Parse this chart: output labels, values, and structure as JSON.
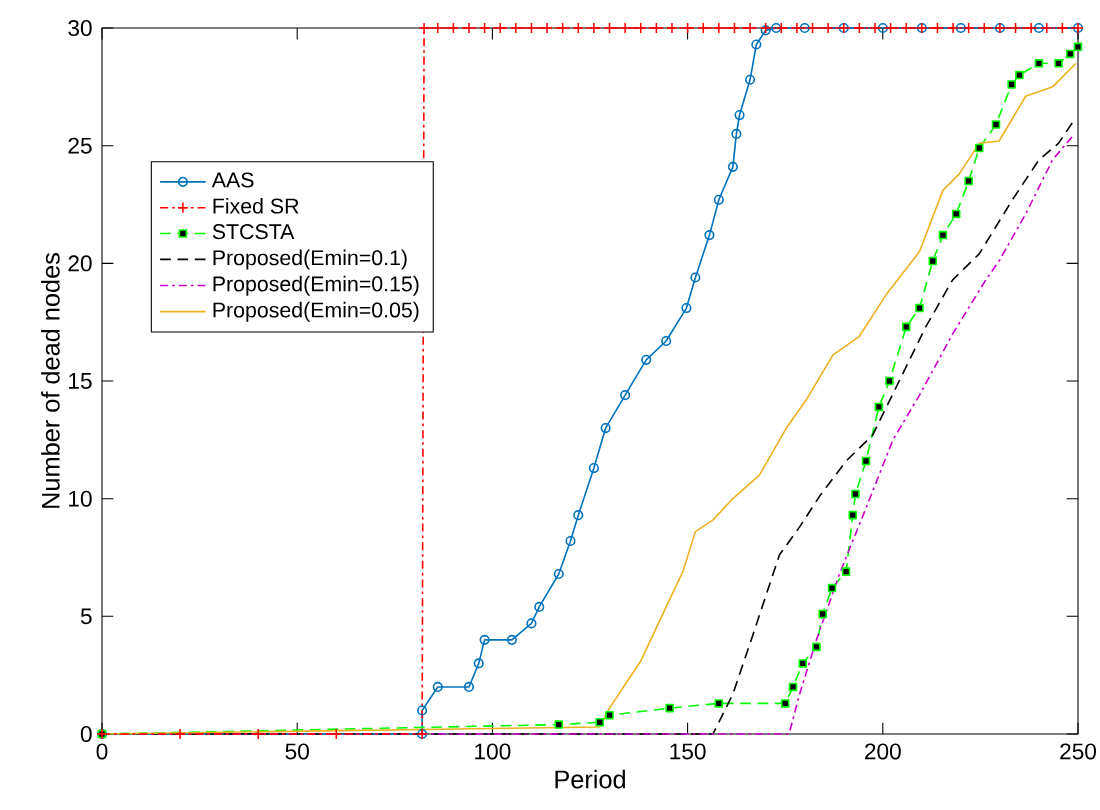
{
  "chart_data": {
    "type": "line",
    "xlabel": "Period",
    "ylabel": "Number of dead nodes",
    "xlim": [
      0,
      250
    ],
    "ylim": [
      0,
      30
    ],
    "xticks": [
      0,
      50,
      100,
      150,
      200,
      250
    ],
    "yticks": [
      0,
      5,
      10,
      15,
      20,
      25,
      30
    ],
    "grid": false,
    "legend": "left",
    "series": [
      {
        "name": "AAS",
        "color": "#0072bd",
        "marker": "circle",
        "line_style": "solid",
        "x": [
          0,
          82,
          82,
          86,
          94,
          96.5,
          98,
          105,
          110,
          112,
          117,
          120,
          122,
          126,
          129,
          134,
          139.4,
          144.5,
          149.7,
          152,
          155.6,
          158,
          161.6,
          162.5,
          163.3,
          166,
          167.6,
          170,
          172.7,
          180,
          190,
          200,
          210,
          220,
          230,
          240,
          250
        ],
        "values": [
          0,
          0,
          1,
          2,
          2,
          3,
          4,
          4,
          4.7,
          5.4,
          6.8,
          8.2,
          9.3,
          11.3,
          13,
          14.4,
          15.9,
          16.7,
          18.1,
          19.4,
          21.2,
          22.7,
          24.1,
          25.5,
          26.3,
          27.8,
          29.3,
          29.9,
          30,
          30,
          30,
          30,
          30,
          30,
          30,
          30,
          30
        ]
      },
      {
        "name": "Fixed SR",
        "color": "#ff0000",
        "marker": "cross",
        "line_style": "dashdot",
        "x": [
          0,
          20,
          40,
          60,
          82,
          82.5,
          86,
          90,
          94,
          98,
          102,
          106,
          110,
          114,
          118,
          122,
          126,
          130,
          134,
          138,
          142,
          146,
          150,
          154,
          158,
          162,
          166,
          170,
          174,
          178,
          182,
          186,
          190,
          194,
          198,
          202,
          206,
          210,
          214,
          218,
          222,
          226,
          230,
          234,
          238,
          242,
          246,
          250
        ],
        "values": [
          0,
          0,
          0,
          0,
          0,
          30,
          30,
          30,
          30,
          30,
          30,
          30,
          30,
          30,
          30,
          30,
          30,
          30,
          30,
          30,
          30,
          30,
          30,
          30,
          30,
          30,
          30,
          30,
          30,
          30,
          30,
          30,
          30,
          30,
          30,
          30,
          30,
          30,
          30,
          30,
          30,
          30,
          30,
          30,
          30,
          30,
          30,
          30
        ]
      },
      {
        "name": "STCSTA",
        "color": "#00ff00",
        "marker": "square",
        "line_style": "dashed",
        "x": [
          0,
          117,
          127.5,
          130,
          145.4,
          158,
          175,
          177,
          179.5,
          183,
          184.6,
          187,
          190.6,
          192.3,
          193,
          195.7,
          199,
          201.7,
          206,
          209.4,
          212.8,
          215.4,
          218.8,
          222,
          224.7,
          229,
          233,
          235,
          240,
          245,
          248,
          250
        ],
        "values": [
          0,
          0.4,
          0.5,
          0.8,
          1.1,
          1.3,
          1.3,
          2,
          3,
          3.7,
          5.1,
          6.2,
          6.9,
          9.3,
          10.2,
          11.6,
          13.9,
          15,
          17.3,
          18.1,
          20.1,
          21.2,
          22.1,
          23.5,
          24.9,
          25.9,
          27.6,
          28,
          28.5,
          28.5,
          28.9,
          29.2
        ]
      },
      {
        "name": "Proposed(Emin=0.1)",
        "color": "#000000",
        "marker": "none",
        "line_style": "dashed",
        "x": [
          0,
          156.5,
          161.6,
          166.7,
          173.5,
          178.7,
          183.8,
          190.6,
          197.4,
          204.2,
          211,
          217.9,
          224.7,
          233.2,
          240,
          245,
          249.5
        ],
        "values": [
          0,
          0,
          1.7,
          4.2,
          7.6,
          8.8,
          10.1,
          11.6,
          12.7,
          15,
          17.3,
          19.3,
          20.4,
          22.7,
          24.4,
          25.1,
          26.2
        ]
      },
      {
        "name": "Proposed(Emin=0.15)",
        "color": "#cc00cc",
        "marker": "none",
        "line_style": "dashdot",
        "x": [
          0,
          176,
          178.7,
          183,
          188.9,
          195.7,
          202.6,
          209.4,
          217.9,
          226.4,
          229.8,
          236.6,
          243.5,
          248.6
        ],
        "values": [
          0,
          0,
          1.7,
          4,
          6.8,
          9.6,
          12.5,
          14.4,
          17,
          19.3,
          20.1,
          22.1,
          24.4,
          25.4
        ]
      },
      {
        "name": "Proposed(Emin=0.05)",
        "color": "#edb120",
        "marker": "none",
        "line_style": "solid",
        "x": [
          0,
          127.5,
          130,
          138,
          144.5,
          148.8,
          152,
          156.5,
          161.6,
          168.4,
          175.3,
          180.4,
          187.2,
          194,
          201,
          209.4,
          215.4,
          219.6,
          224.7,
          229.8,
          236.6,
          243.5,
          249.5
        ],
        "values": [
          0,
          0.3,
          1.1,
          3.1,
          5.4,
          6.9,
          8.6,
          9.1,
          10,
          11,
          13,
          14.2,
          16.1,
          16.9,
          18.7,
          20.5,
          23.1,
          23.8,
          25.1,
          25.2,
          27.1,
          27.5,
          28.5
        ]
      }
    ]
  }
}
